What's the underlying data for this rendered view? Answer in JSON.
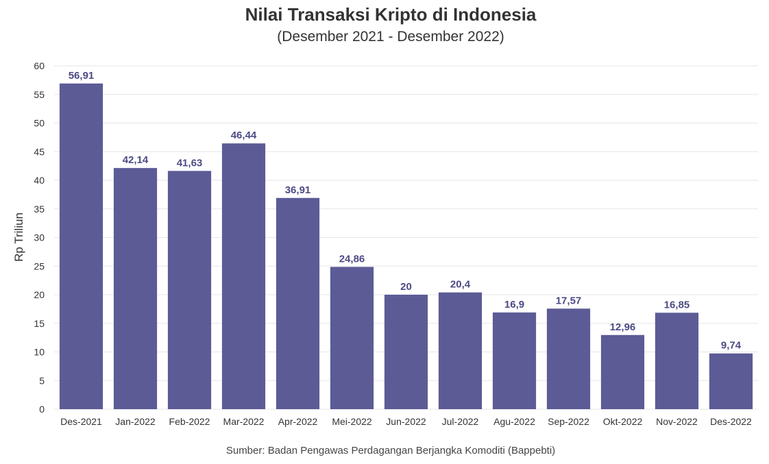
{
  "chart_data": {
    "type": "bar",
    "title": "Nilai Transaksi Kripto di Indonesia",
    "subtitle": "(Desember 2021 - Desember 2022)",
    "xlabel": "",
    "ylabel": "Rp Triliun",
    "categories": [
      "Des-2021",
      "Jan-2022",
      "Feb-2022",
      "Mar-2022",
      "Apr-2022",
      "Mei-2022",
      "Jun-2022",
      "Jul-2022",
      "Agu-2022",
      "Sep-2022",
      "Okt-2022",
      "Nov-2022",
      "Des-2022"
    ],
    "values": [
      56.91,
      42.14,
      41.63,
      46.44,
      36.91,
      24.86,
      20,
      20.4,
      16.9,
      17.57,
      12.96,
      16.85,
      9.74
    ],
    "data_labels": [
      "56,91",
      "42,14",
      "41,63",
      "46,44",
      "36,91",
      "24,86",
      "20",
      "20,4",
      "16,9",
      "17,57",
      "12,96",
      "16,85",
      "9,74"
    ],
    "ylim": [
      0,
      60
    ],
    "yticks": [
      0,
      5,
      10,
      15,
      20,
      25,
      30,
      35,
      40,
      45,
      50,
      55,
      60
    ],
    "grid": true,
    "bar_color": "#5c5b96",
    "label_color": "#4b4a85"
  },
  "footer": {
    "source": "Sumber: Badan Pengawas Perdagangan Berjangka Komoditi (Bappebti)"
  }
}
